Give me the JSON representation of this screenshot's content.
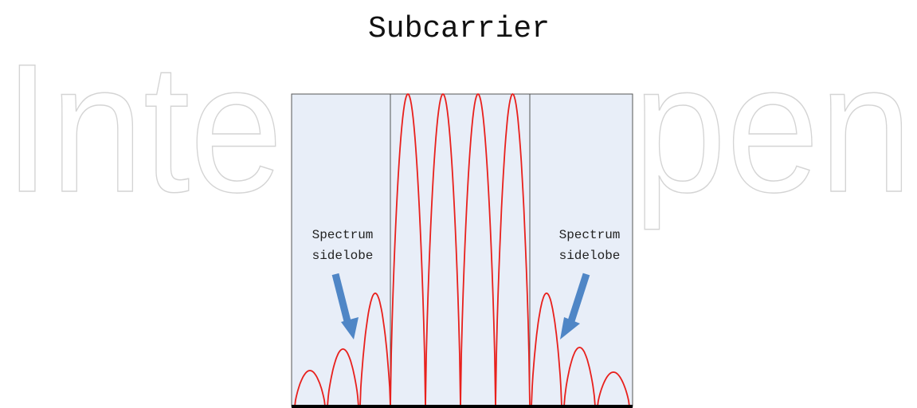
{
  "title": "Subcarrier",
  "watermark": {
    "left": "Inte",
    "right": "pen"
  },
  "labels": [
    {
      "line1": "Spectrum",
      "line2": "sidelobe"
    },
    {
      "line1": "Spectrum",
      "line2": "sidelobe"
    }
  ]
}
